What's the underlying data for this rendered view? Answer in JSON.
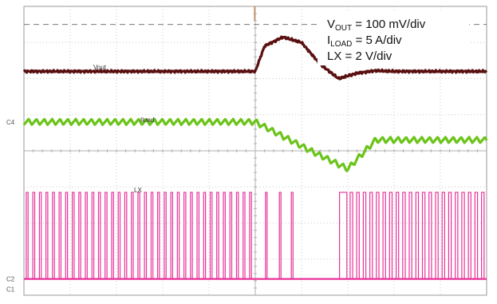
{
  "chart_data": {
    "type": "line",
    "title": "",
    "xlabel": "",
    "ylabel": "",
    "grid": true,
    "divisions": {
      "x": 10,
      "y": 8
    },
    "legend": {
      "placement": "top-right",
      "entries": [
        {
          "main": "V",
          "sub": "OUT",
          "rest": " = 100 mV/div"
        },
        {
          "main": "I",
          "sub": "LOAD",
          "rest": " = 5 A/div"
        },
        {
          "main": "LX = 2 V/div",
          "sub": "",
          "rest": ""
        }
      ]
    },
    "channel_markers": [
      "C1",
      "C2",
      "C4"
    ],
    "series": [
      {
        "name": "Vout",
        "label": "Vout",
        "color": "#5a1010",
        "x_div": [
          0,
          5.0,
          5.2,
          5.6,
          6.0,
          6.4,
          6.8,
          7.2,
          7.6,
          8.0,
          9.0,
          10
        ],
        "y_div": [
          6.2,
          6.2,
          6.9,
          7.15,
          7.0,
          6.4,
          6.0,
          6.15,
          6.22,
          6.2,
          6.2,
          6.2
        ]
      },
      {
        "name": "Iload",
        "label": "Iload",
        "color": "#6bc41a",
        "x_div": [
          0,
          5.0,
          6.2,
          7.0,
          7.6,
          10
        ],
        "y_div": [
          4.8,
          4.8,
          4.0,
          3.5,
          4.3,
          4.3
        ]
      },
      {
        "name": "LX",
        "label": "LX",
        "color": "#e8329a",
        "high_div": 2.85,
        "low_div": 0.45,
        "phases": [
          {
            "x_start": 0,
            "x_end": 5.0,
            "mode": "switching"
          },
          {
            "x_start": 5.0,
            "x_end": 6.8,
            "mode": "pulse-skipping"
          },
          {
            "x_start": 6.8,
            "x_end": 10,
            "mode": "switching"
          }
        ]
      }
    ]
  }
}
